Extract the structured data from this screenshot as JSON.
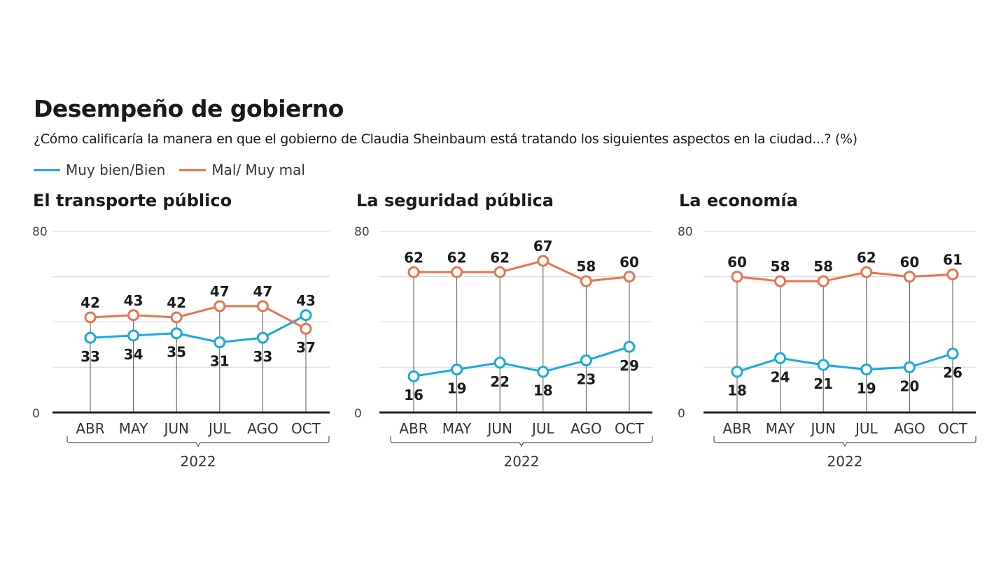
{
  "title": "Desempeño de gobierno",
  "subtitle": "¿Cómo calificaría la manera en que el gobierno de Claudia Sheinbaum está tratando los siguientes aspectos en la ciudad...? (%)",
  "legend": [
    {
      "label": "Muy bien/Bien",
      "color": "#1aa9df"
    },
    {
      "label": "Mal/ Muy mal",
      "color": "#e8744e"
    }
  ],
  "chart_data": [
    {
      "type": "line",
      "title": "El transporte público",
      "categories": [
        "ABR",
        "MAY",
        "JUN",
        "JUL",
        "AGO",
        "OCT"
      ],
      "year": "2022",
      "ylim": [
        0,
        80
      ],
      "ytick_labels": [
        "0",
        "80"
      ],
      "grid": true,
      "series": [
        {
          "name": "Muy bien/Bien",
          "color": "#1aa9df",
          "values": [
            33,
            34,
            35,
            31,
            33,
            43
          ]
        },
        {
          "name": "Mal/ Muy mal",
          "color": "#e8744e",
          "values": [
            42,
            43,
            42,
            47,
            47,
            37
          ]
        }
      ]
    },
    {
      "type": "line",
      "title": "La seguridad pública",
      "categories": [
        "ABR",
        "MAY",
        "JUN",
        "JUL",
        "AGO",
        "OCT"
      ],
      "year": "2022",
      "ylim": [
        0,
        80
      ],
      "ytick_labels": [
        "0",
        "80"
      ],
      "grid": true,
      "series": [
        {
          "name": "Muy bien/Bien",
          "color": "#1aa9df",
          "values": [
            16,
            19,
            22,
            18,
            23,
            29
          ]
        },
        {
          "name": "Mal/ Muy mal",
          "color": "#e8744e",
          "values": [
            62,
            62,
            62,
            67,
            58,
            60
          ]
        }
      ]
    },
    {
      "type": "line",
      "title": "La economía",
      "categories": [
        "ABR",
        "MAY",
        "JUN",
        "JUL",
        "AGO",
        "OCT"
      ],
      "year": "2022",
      "ylim": [
        0,
        80
      ],
      "ytick_labels": [
        "0",
        "80"
      ],
      "grid": true,
      "series": [
        {
          "name": "Muy bien/Bien",
          "color": "#1aa9df",
          "values": [
            18,
            24,
            21,
            19,
            20,
            26
          ]
        },
        {
          "name": "Mal/ Muy mal",
          "color": "#e8744e",
          "values": [
            60,
            58,
            58,
            62,
            60,
            61
          ]
        }
      ]
    }
  ]
}
